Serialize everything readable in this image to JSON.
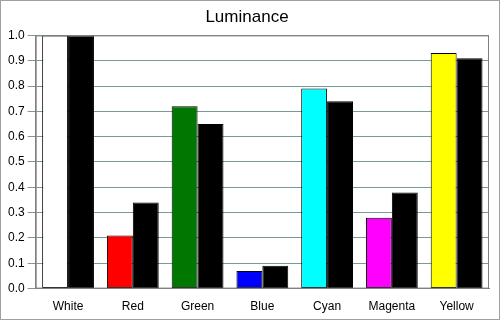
{
  "chart_data": {
    "type": "bar",
    "title": "Luminance",
    "categories": [
      "White",
      "Red",
      "Green",
      "Blue",
      "Cyan",
      "Magenta",
      "Yellow"
    ],
    "series": [
      {
        "colors": [
          "#ffffff",
          "#ff0000",
          "#007700",
          "#0000ff",
          "#00ffff",
          "#ff00ff",
          "#ffff00"
        ],
        "values": [
          1.0,
          0.21,
          0.72,
          0.07,
          0.79,
          0.28,
          0.93
        ]
      },
      {
        "color": "#000000",
        "values": [
          1.0,
          0.34,
          0.65,
          0.09,
          0.74,
          0.38,
          0.91
        ]
      }
    ],
    "ylim": [
      0,
      1
    ],
    "yticks": [
      {
        "value": 0,
        "label": "0.0"
      },
      0.1,
      0.2,
      0.3,
      0.4,
      0.5,
      0.6,
      0.7,
      0.8,
      0.9,
      {
        "value": 1,
        "label": "1.0"
      }
    ],
    "grid": true
  }
}
